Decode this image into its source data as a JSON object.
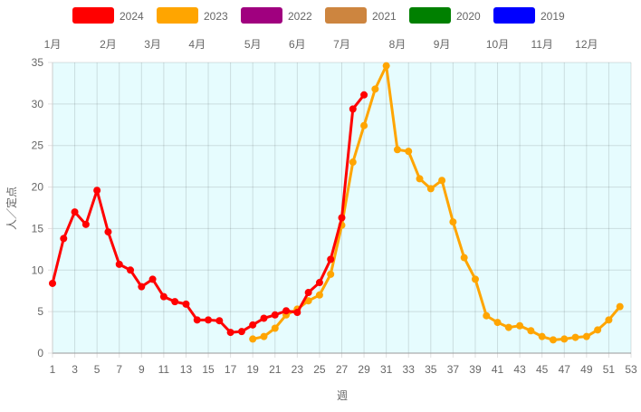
{
  "chart_data": {
    "type": "line",
    "xlabel": "週",
    "ylabel": "人／定点",
    "xlim": [
      1,
      53
    ],
    "ylim": [
      0,
      35
    ],
    "x_ticks": [
      1,
      3,
      5,
      7,
      9,
      11,
      13,
      15,
      17,
      19,
      21,
      23,
      25,
      27,
      29,
      31,
      33,
      35,
      37,
      39,
      41,
      43,
      45,
      47,
      49,
      51,
      53
    ],
    "y_ticks": [
      0,
      5,
      10,
      15,
      20,
      25,
      30,
      35
    ],
    "grid": true,
    "legend_position": "top",
    "month_labels": [
      {
        "label": "1月",
        "week": 1
      },
      {
        "label": "2月",
        "week": 6
      },
      {
        "label": "3月",
        "week": 10
      },
      {
        "label": "4月",
        "week": 14
      },
      {
        "label": "5月",
        "week": 19
      },
      {
        "label": "6月",
        "week": 23
      },
      {
        "label": "7月",
        "week": 27
      },
      {
        "label": "8月",
        "week": 32
      },
      {
        "label": "9月",
        "week": 36
      },
      {
        "label": "10月",
        "week": 41
      },
      {
        "label": "11月",
        "week": 45
      },
      {
        "label": "12月",
        "week": 49
      }
    ],
    "series": [
      {
        "name": "2024",
        "color": "#ff0000",
        "start_week": 1,
        "values": [
          8.4,
          13.8,
          17.0,
          15.5,
          19.6,
          14.6,
          10.7,
          10.0,
          8.0,
          8.9,
          6.8,
          6.2,
          5.9,
          4.0,
          4.0,
          3.9,
          2.5,
          2.6,
          3.4,
          4.2,
          4.6,
          5.1,
          4.9,
          7.3,
          8.5,
          11.3,
          16.3,
          29.4,
          31.1
        ]
      },
      {
        "name": "2023",
        "color": "#ffa500",
        "start_week": 19,
        "values": [
          1.7,
          2.0,
          3.0,
          4.6,
          5.3,
          6.3,
          7.0,
          9.5,
          15.4,
          23.0,
          27.4,
          31.8,
          34.6,
          24.5,
          24.3,
          21.0,
          19.8,
          20.8,
          15.8,
          11.5,
          8.9,
          4.5,
          3.7,
          3.1,
          3.3,
          2.7,
          2.0,
          1.6,
          1.7,
          1.9,
          2.0,
          2.8,
          4.0,
          5.6
        ]
      },
      {
        "name": "2022",
        "color": "#a0007f",
        "start_week": 1,
        "values": []
      },
      {
        "name": "2021",
        "color": "#cd853f",
        "start_week": 1,
        "values": []
      },
      {
        "name": "2020",
        "color": "#008000",
        "start_week": 1,
        "values": []
      },
      {
        "name": "2019",
        "color": "#0000ff",
        "start_week": 1,
        "values": []
      }
    ]
  }
}
